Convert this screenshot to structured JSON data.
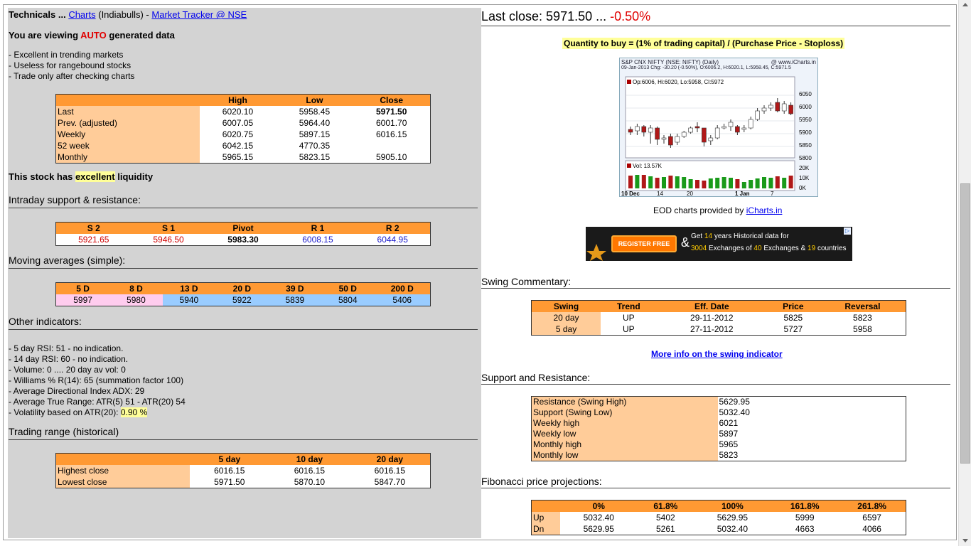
{
  "header": {
    "prefix": "Technicals ...",
    "charts_link": "Charts",
    "broker": "(Indiabulls) -",
    "tracker_link": "Market Tracker @ NSE"
  },
  "viewing": {
    "prefix": "You are viewing",
    "auto": "AUTO",
    "suffix": "generated data"
  },
  "notes": [
    "- Excellent in trending markets",
    "- Useless for rangebound stocks",
    "- Trade only after checking charts"
  ],
  "price_table": {
    "headers": [
      "High",
      "Low",
      "Close"
    ],
    "rows": [
      {
        "label": "Last",
        "high": "6020.10",
        "low": "5958.45",
        "close": "5971.50"
      },
      {
        "label": "Prev. (adjusted)",
        "high": "6007.05",
        "low": "5964.40",
        "close": "6001.70"
      },
      {
        "label": "Weekly",
        "high": "6020.75",
        "low": "5897.15",
        "close": "6016.15"
      },
      {
        "label": "52 week",
        "high": "6042.15",
        "low": "4770.35",
        "close": ""
      },
      {
        "label": "Monthly",
        "high": "5965.15",
        "low": "5823.15",
        "close": "5905.10"
      }
    ]
  },
  "liquidity": {
    "prefix": "This stock has",
    "value": "excellent",
    "suffix": "liquidity"
  },
  "intraday": {
    "title": "Intraday support & resistance:",
    "headers": [
      "S 2",
      "S 1",
      "Pivot",
      "R 1",
      "R 2"
    ],
    "values": [
      "5921.65",
      "5946.50",
      "5983.30",
      "6008.15",
      "6044.95"
    ]
  },
  "moving_averages": {
    "title": "Moving averages (simple):",
    "headers": [
      "5 D",
      "8 D",
      "13 D",
      "20 D",
      "39 D",
      "50 D",
      "200 D"
    ],
    "values": [
      "5997",
      "5980",
      "5940",
      "5922",
      "5839",
      "5804",
      "5406"
    ]
  },
  "other": {
    "title": "Other indicators:",
    "items": [
      "- 5 day RSI: 51 - no indication.",
      "- 14 day RSI: 60 - no indication.",
      "- Volume: 0 .... 20 day av vol: 0",
      "- Williams % R(14): 65 (summation factor 100)",
      "- Average Directional Index ADX: 29",
      "- Average True Range: ATR(5) 51 - ATR(20) 54"
    ],
    "volatility_prefix": "- Volatility based on ATR(20):",
    "volatility_value": "0.90 %"
  },
  "trading_range": {
    "title": "Trading range (historical)",
    "headers": [
      "5 day",
      "10 day",
      "20 day"
    ],
    "rows": [
      {
        "label": "Highest close",
        "v": [
          "6016.15",
          "6016.15",
          "6016.15"
        ]
      },
      {
        "label": "Lowest close",
        "v": [
          "5971.50",
          "5870.10",
          "5847.70"
        ]
      }
    ]
  },
  "last_close": {
    "prefix": "Last close: 5971.50 ...",
    "change": "-0.50%"
  },
  "formula": "Quantity to buy = (1% of trading capital) / (Purchase Price - Stoploss)",
  "chart": {
    "title": "S&P CNX NIFTY (NSE: NIFTY) (Daily)",
    "source": "@ www.iCharts.in",
    "info": "09-Jan-2013 Chg:   -30.20 (-0.50%), O:6006.2, H:6020.1, L:5958.45, C:5971.5",
    "ohlc": "Op:6006, Hi:6020, Lo:5958, Cl:5972",
    "vol": "Vol: 13.57K",
    "price_ticks": [
      "6050",
      "6000",
      "5950",
      "5900",
      "5850",
      "5800"
    ],
    "vol_ticks": [
      "20K",
      "10K",
      "0K"
    ],
    "x_ticks": [
      "10 Dec",
      "14",
      "20",
      "1 Jan",
      "7"
    ]
  },
  "eod": {
    "prefix": "EOD charts provided by",
    "link": "iCharts.in"
  },
  "ad": {
    "register": "REGISTER FREE",
    "amp": "&",
    "line1_a": "Get",
    "line1_b": "14",
    "line1_c": "years Historical data for",
    "line2_a": "3004",
    "line2_b": "Exchanges of",
    "line2_c": "40",
    "line2_d": "Exchanges &",
    "line2_e": "19",
    "line2_f": "countries"
  },
  "swing": {
    "title": "Swing Commentary:",
    "headers": [
      "Swing",
      "Trend",
      "Eff. Date",
      "Price",
      "Reversal"
    ],
    "rows": [
      {
        "swing": "20 day",
        "trend": "UP",
        "date": "29-11-2012",
        "price": "5825",
        "reversal": "5823"
      },
      {
        "swing": "5 day",
        "trend": "UP",
        "date": "27-11-2012",
        "price": "5727",
        "reversal": "5958"
      }
    ],
    "more_link": "More info on the swing indicator"
  },
  "sr": {
    "title": "Support and Resistance:",
    "rows": [
      {
        "label": "Resistance (Swing High)",
        "value": "5629.95"
      },
      {
        "label": "Support (Swing Low)",
        "value": "5032.40"
      },
      {
        "label": "Weekly high",
        "value": "6021"
      },
      {
        "label": "Weekly low",
        "value": "5897"
      },
      {
        "label": "Monthly high",
        "value": "5965"
      },
      {
        "label": "Monthly low",
        "value": "5823"
      }
    ]
  },
  "fib": {
    "title": "Fibonacci price projections:",
    "headers": [
      "0%",
      "61.8%",
      "100%",
      "161.8%",
      "261.8%"
    ],
    "rows": [
      {
        "label": "Up",
        "v": [
          "5032.40",
          "5402",
          "5629.95",
          "5999",
          "6597"
        ]
      },
      {
        "label": "Dn",
        "v": [
          "5629.95",
          "5261",
          "5032.40",
          "4663",
          "4066"
        ]
      }
    ]
  },
  "colors": {
    "header_orange": "#ff9933",
    "label_peach": "#ffcc99",
    "pink": "#ffccee",
    "blue": "#99ccff",
    "red": "#e00000",
    "highlight": "#ffff99"
  }
}
